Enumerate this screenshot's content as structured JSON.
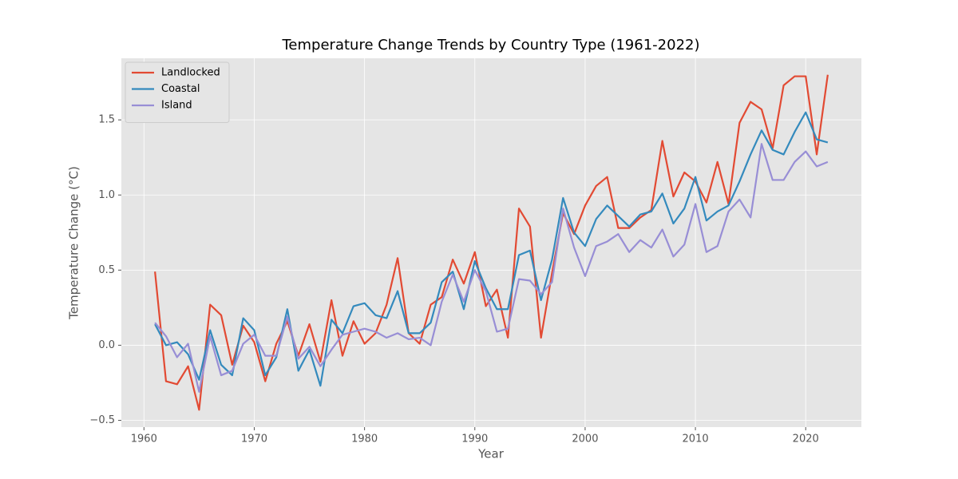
{
  "chart_data": {
    "type": "line",
    "title": "Temperature Change Trends by Country Type (1961-2022)",
    "x_label": "Year",
    "y_label": "Temperature Change (°C)",
    "x": [
      1961,
      1962,
      1963,
      1964,
      1965,
      1966,
      1967,
      1968,
      1969,
      1970,
      1971,
      1972,
      1973,
      1974,
      1975,
      1976,
      1977,
      1978,
      1979,
      1980,
      1981,
      1982,
      1983,
      1984,
      1985,
      1986,
      1987,
      1988,
      1989,
      1990,
      1991,
      1992,
      1993,
      1994,
      1995,
      1996,
      1997,
      1998,
      1999,
      2000,
      2001,
      2002,
      2003,
      2004,
      2005,
      2006,
      2007,
      2008,
      2009,
      2010,
      2011,
      2012,
      2013,
      2014,
      2015,
      2016,
      2017,
      2018,
      2019,
      2020,
      2021,
      2022
    ],
    "series": [
      {
        "name": "Landlocked",
        "color": "#E24A33",
        "values": [
          0.49,
          -0.24,
          -0.26,
          -0.14,
          -0.43,
          0.27,
          0.2,
          -0.13,
          0.13,
          0.02,
          -0.24,
          0.01,
          0.16,
          -0.07,
          0.14,
          -0.11,
          0.3,
          -0.07,
          0.16,
          0.01,
          0.08,
          0.27,
          0.58,
          0.08,
          0.01,
          0.27,
          0.32,
          0.57,
          0.41,
          0.62,
          0.26,
          0.37,
          0.05,
          0.91,
          0.79,
          0.05,
          0.48,
          0.88,
          0.74,
          0.93,
          1.06,
          1.12,
          0.78,
          0.78,
          0.85,
          0.9,
          1.36,
          0.99,
          1.15,
          1.09,
          0.95,
          1.22,
          0.94,
          1.48,
          1.62,
          1.57,
          1.31,
          1.73,
          1.79,
          1.79,
          1.27,
          1.8
        ]
      },
      {
        "name": "Coastal",
        "color": "#348ABD",
        "values": [
          0.14,
          0.0,
          0.02,
          -0.06,
          -0.23,
          0.1,
          -0.13,
          -0.2,
          0.18,
          0.1,
          -0.2,
          -0.08,
          0.24,
          -0.17,
          -0.03,
          -0.27,
          0.17,
          0.08,
          0.26,
          0.28,
          0.2,
          0.18,
          0.36,
          0.08,
          0.08,
          0.15,
          0.42,
          0.49,
          0.24,
          0.56,
          0.38,
          0.24,
          0.24,
          0.6,
          0.63,
          0.3,
          0.57,
          0.98,
          0.75,
          0.66,
          0.84,
          0.93,
          0.86,
          0.79,
          0.87,
          0.89,
          1.01,
          0.81,
          0.91,
          1.12,
          0.83,
          0.89,
          0.93,
          1.09,
          1.27,
          1.43,
          1.3,
          1.27,
          1.42,
          1.55,
          1.37,
          1.35
        ]
      },
      {
        "name": "Island",
        "color": "#988ED5",
        "values": [
          0.15,
          0.06,
          -0.08,
          0.01,
          -0.31,
          0.06,
          -0.2,
          -0.17,
          0.01,
          0.07,
          -0.07,
          -0.07,
          0.19,
          -0.09,
          -0.01,
          -0.14,
          -0.03,
          0.07,
          0.09,
          0.11,
          0.09,
          0.05,
          0.08,
          0.04,
          0.05,
          0.0,
          0.29,
          0.47,
          0.29,
          0.5,
          0.36,
          0.09,
          0.11,
          0.44,
          0.43,
          0.34,
          0.42,
          0.91,
          0.65,
          0.46,
          0.66,
          0.69,
          0.74,
          0.62,
          0.7,
          0.65,
          0.77,
          0.59,
          0.67,
          0.94,
          0.62,
          0.66,
          0.89,
          0.97,
          0.85,
          1.34,
          1.1,
          1.1,
          1.22,
          1.29,
          1.19,
          1.22
        ]
      }
    ],
    "xlim": [
      1957.95,
      2025.05
    ],
    "xticks": [
      1960,
      1970,
      1980,
      1990,
      2000,
      2010,
      2020
    ],
    "ylim": [
      -0.545,
      1.91
    ],
    "yticks": [
      {
        "value": -0.5,
        "label": "−0.5"
      },
      {
        "value": 0,
        "label": "0.0"
      },
      {
        "value": 0.5,
        "label": "0.5"
      },
      {
        "value": 1,
        "label": "1.0"
      },
      {
        "value": 1.5,
        "label": "1.5"
      }
    ],
    "grid": true,
    "legend": "upper left"
  }
}
